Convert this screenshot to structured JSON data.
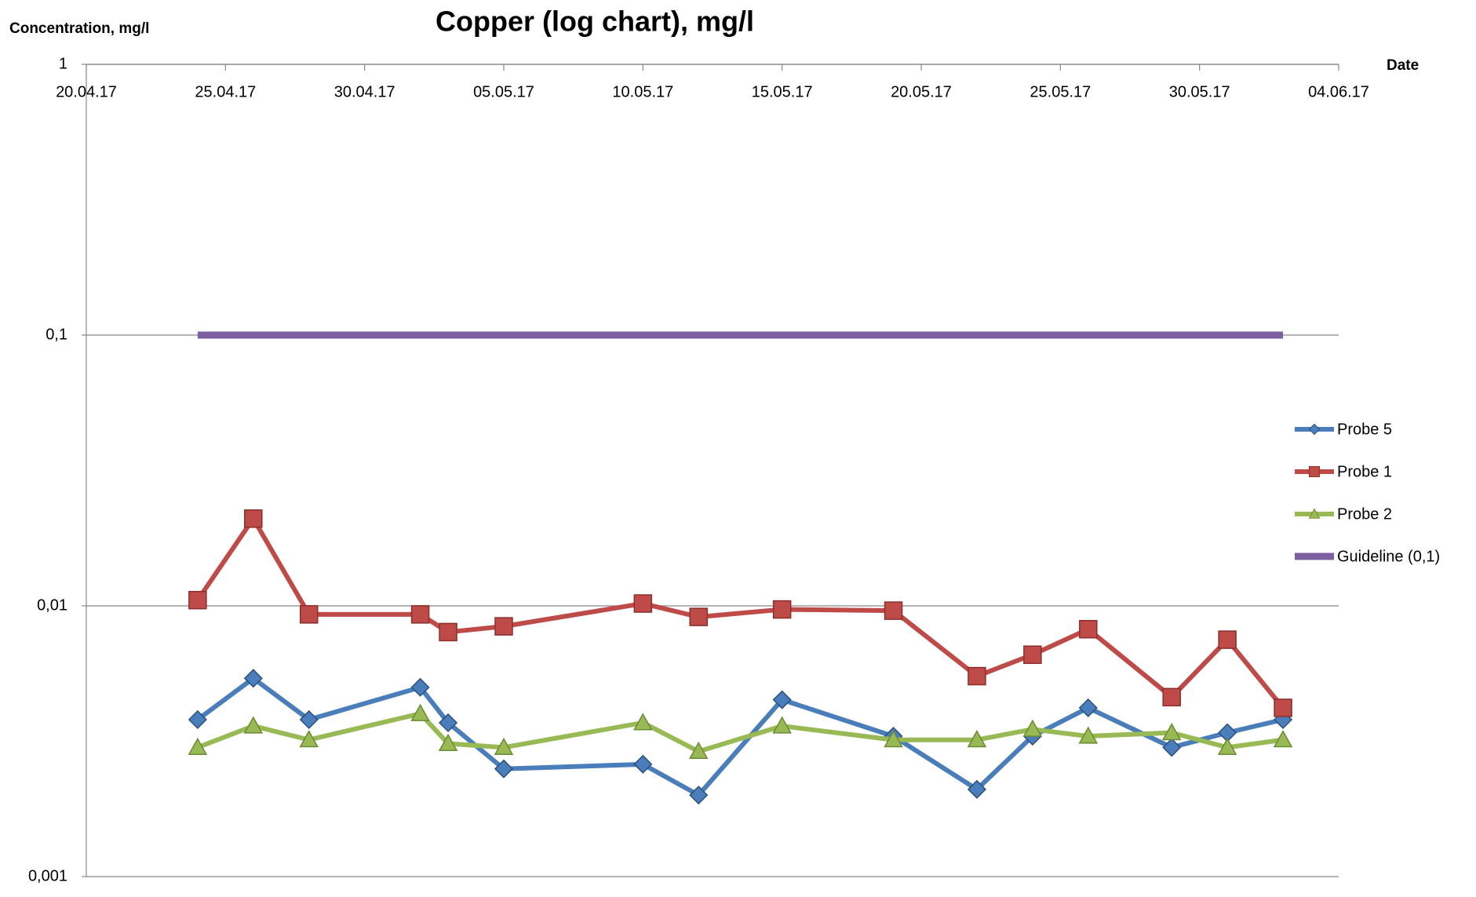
{
  "chart_data": {
    "type": "line",
    "title": "Copper (log chart), mg/l",
    "y_label": "Concentration, mg/l",
    "x_label": "Date",
    "y_log": true,
    "grid": true,
    "legend": "right",
    "x": [
      "24.04.17",
      "26.04.17",
      "28.04.17",
      "02.05.17",
      "03.05.17",
      "05.05.17",
      "10.05.17",
      "12.05.17",
      "15.05.17",
      "19.05.17",
      "22.05.17",
      "24.05.17",
      "26.05.17",
      "29.05.17",
      "31.05.17",
      "02.06.17"
    ],
    "xlim": [
      "20.04.17",
      "04.06.17"
    ],
    "xticks": [
      "20.04.17",
      "25.04.17",
      "30.04.17",
      "05.05.17",
      "10.05.17",
      "15.05.17",
      "20.05.17",
      "25.05.17",
      "30.05.17",
      "04.06.17"
    ],
    "ylim": [
      0.001,
      1
    ],
    "yticks": [
      {
        "value": 0.001,
        "label": "0,001"
      },
      {
        "value": 0.01,
        "label": "0,01"
      },
      {
        "value": 0.1,
        "label": "0,1"
      },
      1
    ],
    "series": [
      {
        "name": "Probe 5",
        "color": "#4a7ebb",
        "marker": "diamond",
        "values": [
          0.0038,
          0.0054,
          0.0038,
          0.005,
          0.0037,
          0.0025,
          0.0026,
          0.002,
          0.0045,
          0.0033,
          0.0021,
          0.0033,
          0.0042,
          0.003,
          0.0034,
          0.0038
        ]
      },
      {
        "name": "Probe 1",
        "color": "#be4b48",
        "marker": "square",
        "values": [
          0.0105,
          0.021,
          0.0093,
          0.0093,
          0.008,
          0.0084,
          0.0102,
          0.0091,
          0.0097,
          0.0096,
          0.0055,
          0.0066,
          0.0082,
          0.0046,
          0.0075,
          0.0042
        ]
      },
      {
        "name": "Probe 2",
        "color": "#98b954",
        "marker": "triangle",
        "values": [
          0.003,
          0.0036,
          0.0032,
          0.004,
          0.0031,
          0.003,
          0.0037,
          0.0029,
          0.0036,
          0.0032,
          0.0032,
          0.0035,
          0.0033,
          0.0034,
          0.003,
          0.0032
        ]
      },
      {
        "name": "Guideline (0,1)",
        "color": "#7d60a0",
        "marker": "none",
        "values": [
          0.1,
          0.1,
          0.1,
          0.1,
          0.1,
          0.1,
          0.1,
          0.1,
          0.1,
          0.1,
          0.1,
          0.1,
          0.1,
          0.1,
          0.1,
          0.1
        ]
      }
    ]
  }
}
